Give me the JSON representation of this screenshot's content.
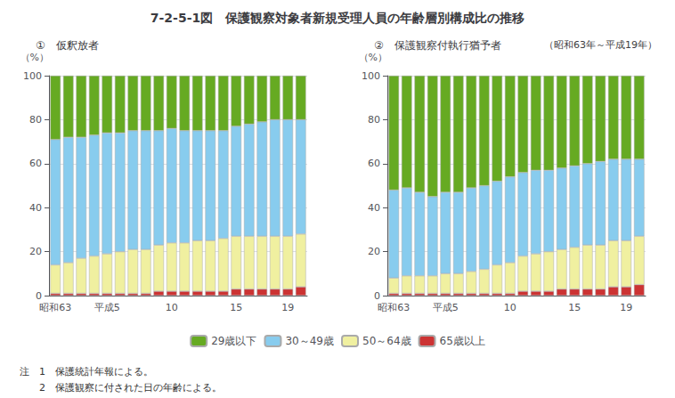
{
  "title": "7-2-5-1図　保護観察対象者新規受理人員の年齢層別構成比の推移",
  "subtitle": "（昭和63年～平成19年）",
  "annotations": [
    "注　1　保護統計年報による。",
    "　　2　保護観察に付された日の年齢による。"
  ],
  "chart_data": [
    {
      "type": "bar",
      "title": "①　仮釈放者",
      "ylabel": "（%）",
      "categories": [
        "昭和63",
        null,
        null,
        null,
        "平成5",
        null,
        null,
        null,
        null,
        "10",
        null,
        null,
        null,
        null,
        "15",
        null,
        null,
        null,
        "19",
        null
      ],
      "series": [
        {
          "name": "65歳以上",
          "color": "#cc3333",
          "values": [
            1,
            1,
            1,
            1,
            1,
            1,
            1,
            1,
            2,
            2,
            2,
            2,
            2,
            2,
            3,
            3,
            3,
            3,
            3,
            4
          ]
        },
        {
          "name": "50～64歳",
          "color": "#f0f0a0",
          "values": [
            13,
            14,
            16,
            17,
            18,
            19,
            20,
            20,
            21,
            22,
            22,
            23,
            23,
            24,
            24,
            24,
            24,
            24,
            24,
            24
          ]
        },
        {
          "name": "30～49歳",
          "color": "#88ccee",
          "values": [
            57,
            57,
            55,
            55,
            55,
            54,
            54,
            54,
            52,
            52,
            51,
            50,
            50,
            49,
            50,
            51,
            52,
            53,
            53,
            52
          ]
        },
        {
          "name": "29歳以下",
          "color": "#66aa22",
          "values": [
            29,
            28,
            28,
            27,
            26,
            26,
            25,
            25,
            25,
            24,
            25,
            25,
            25,
            25,
            23,
            22,
            21,
            20,
            20,
            20
          ]
        }
      ],
      "ylim": [
        0,
        100
      ],
      "yticks": [
        0,
        20,
        40,
        60,
        80,
        100
      ],
      "grid": true,
      "stacked": true,
      "legend": "bottom"
    },
    {
      "type": "bar",
      "title": "②　保護観察付執行猶予者",
      "ylabel": "（%）",
      "categories": [
        "昭和63",
        null,
        null,
        null,
        "平成5",
        null,
        null,
        null,
        null,
        "10",
        null,
        null,
        null,
        null,
        "15",
        null,
        null,
        null,
        "19",
        null
      ],
      "series": [
        {
          "name": "65歳以上",
          "color": "#cc3333",
          "values": [
            1,
            1,
            1,
            1,
            1,
            1,
            1,
            1,
            1,
            1,
            2,
            2,
            2,
            3,
            3,
            3,
            3,
            4,
            4,
            5
          ]
        },
        {
          "name": "50～64歳",
          "color": "#f0f0a0",
          "values": [
            7,
            8,
            8,
            8,
            9,
            9,
            10,
            11,
            13,
            14,
            16,
            17,
            18,
            18,
            19,
            20,
            20,
            21,
            21,
            22
          ]
        },
        {
          "name": "30～49歳",
          "color": "#88ccee",
          "values": [
            40,
            40,
            38,
            36,
            37,
            37,
            38,
            38,
            38,
            39,
            38,
            38,
            37,
            37,
            37,
            37,
            38,
            37,
            37,
            35
          ]
        },
        {
          "name": "29歳以下",
          "color": "#66aa22",
          "values": [
            52,
            51,
            53,
            55,
            53,
            53,
            51,
            50,
            48,
            46,
            44,
            43,
            43,
            42,
            41,
            40,
            39,
            38,
            38,
            38
          ]
        }
      ],
      "ylim": [
        0,
        100
      ],
      "yticks": [
        0,
        20,
        40,
        60,
        80,
        100
      ],
      "grid": true,
      "stacked": true,
      "legend": "bottom"
    }
  ]
}
